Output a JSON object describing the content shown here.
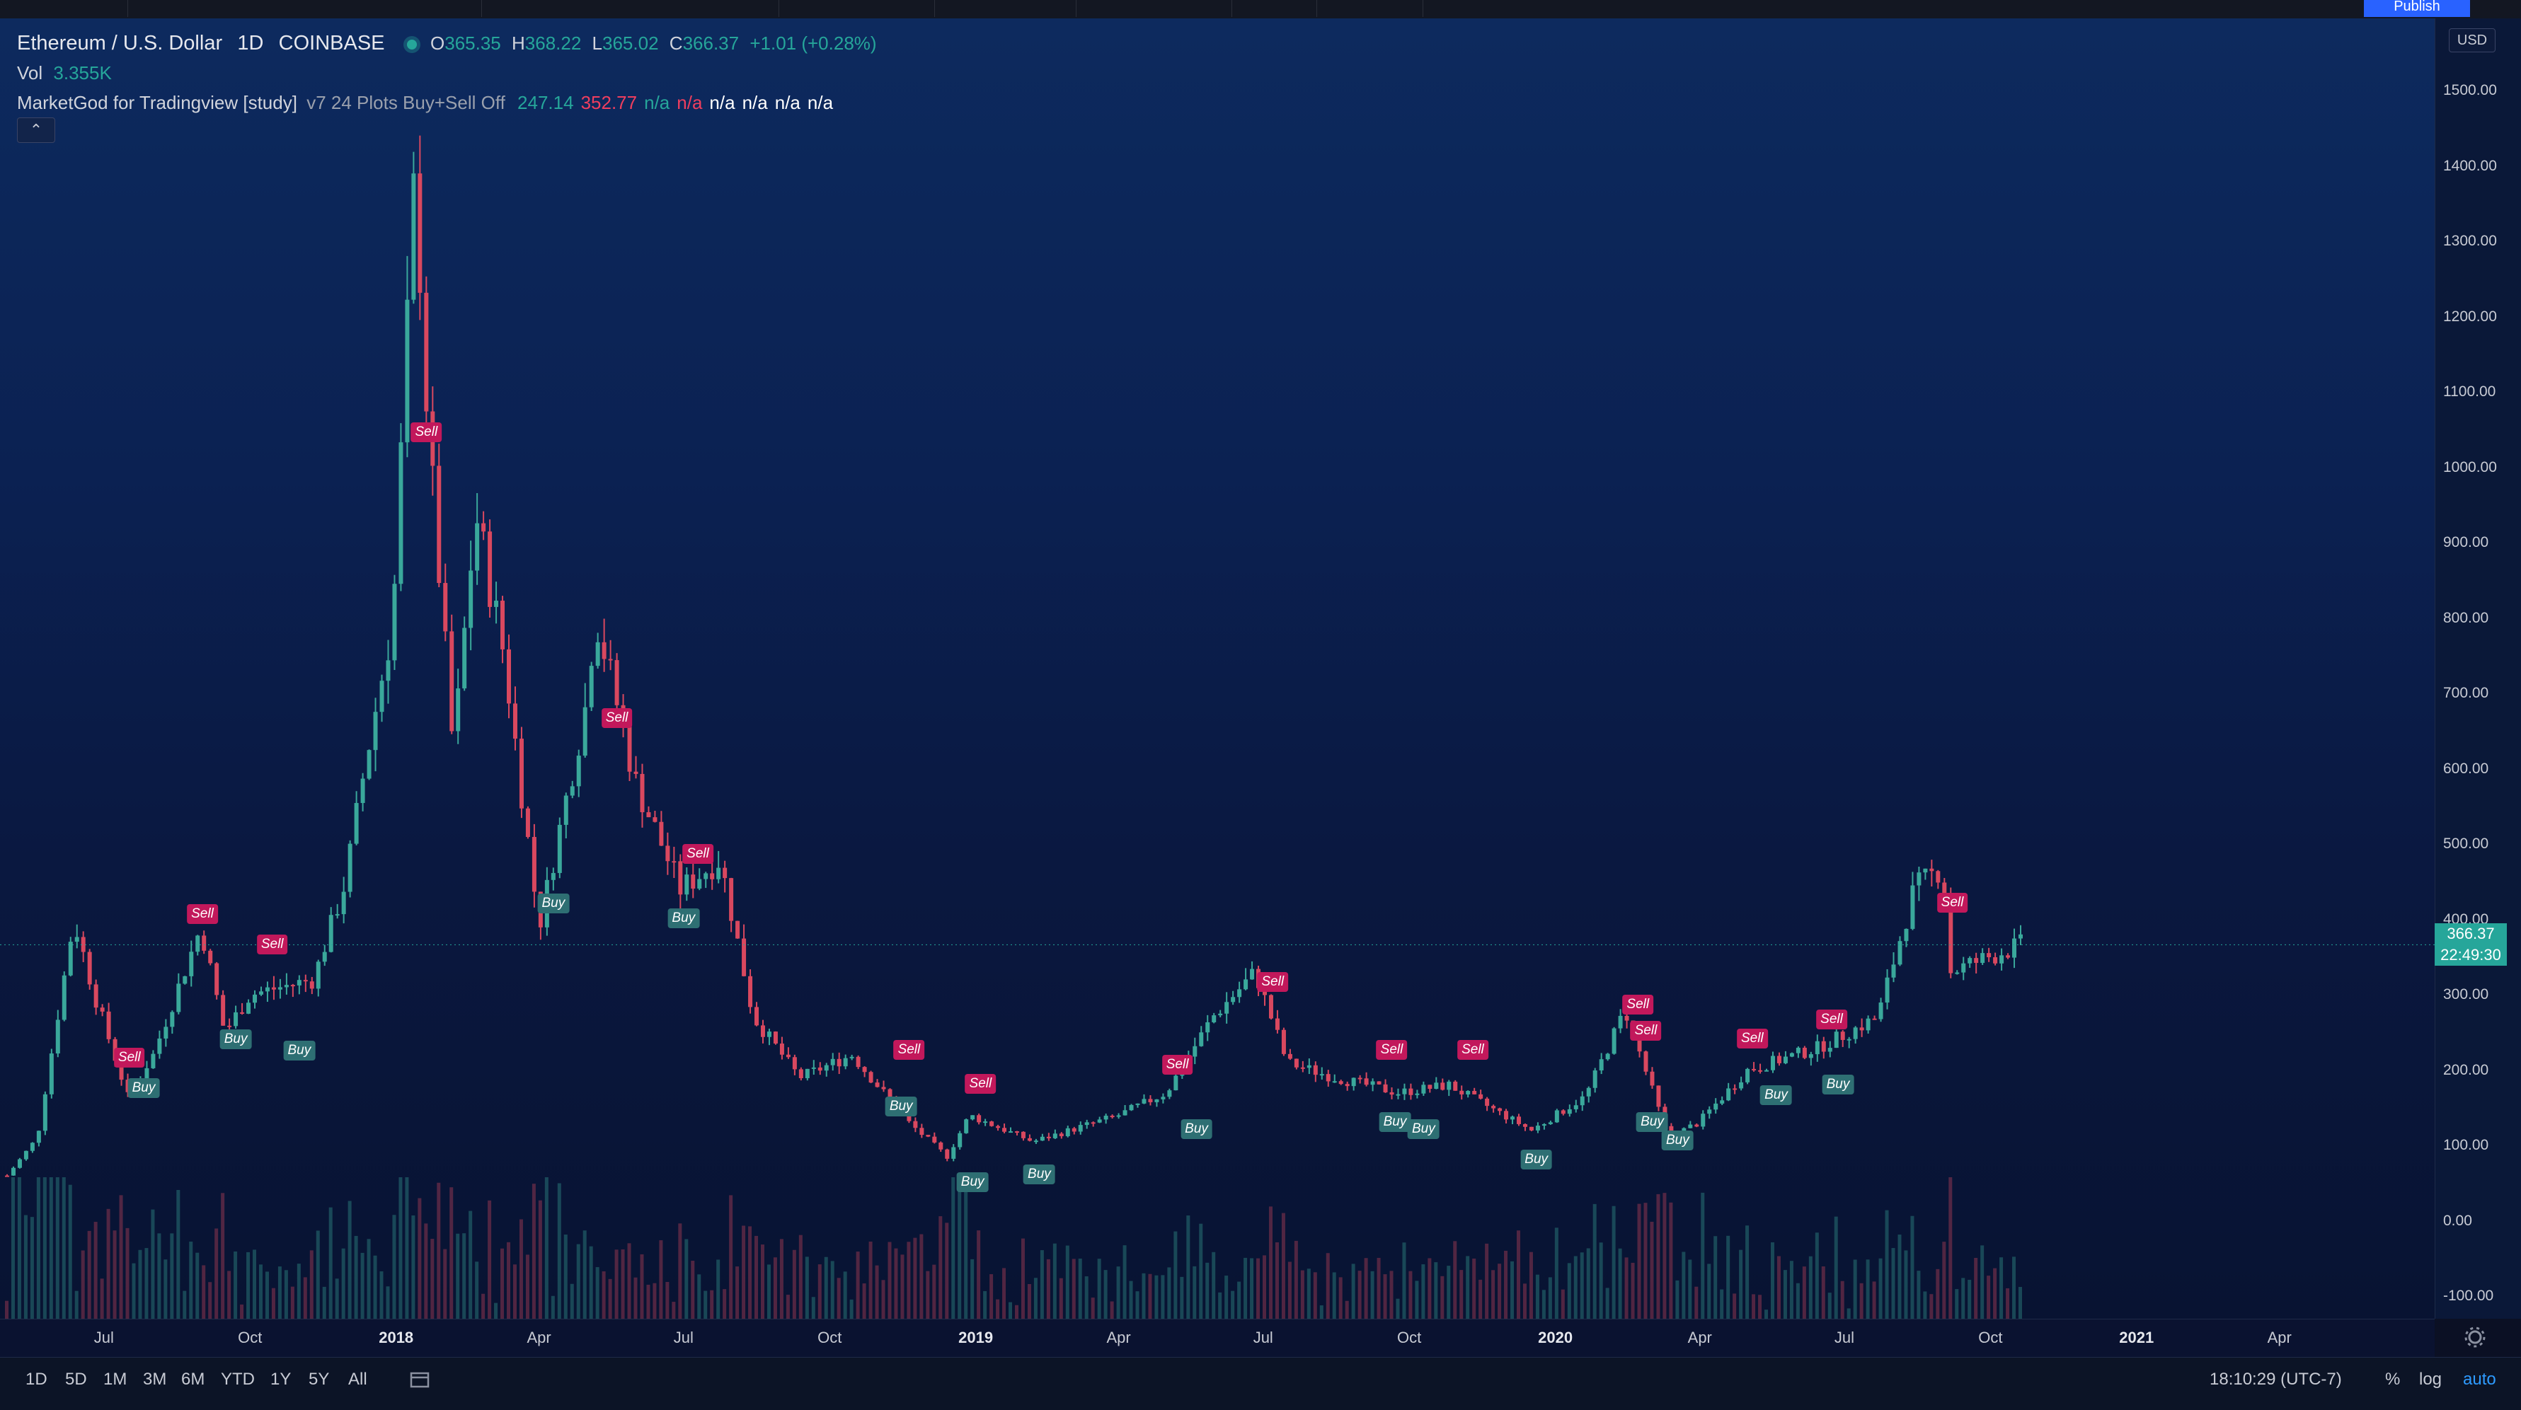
{
  "legend": {
    "symbol": "Ethereum / U.S. Dollar",
    "interval": "1D",
    "exchange": "COINBASE",
    "open_label": "O",
    "open": "365.35",
    "high_label": "H",
    "high": "368.22",
    "low_label": "L",
    "low": "365.02",
    "close_label": "C",
    "close": "366.37",
    "change": "+1.01 (+0.28%)",
    "vol_label": "Vol",
    "vol": "3.355K",
    "indicator_name": "MarketGod for Tradingview [study]",
    "indicator_args": "v7 24 Plots Buy+Sell Off",
    "indicator_values": [
      {
        "text": "247.14",
        "tone": "g"
      },
      {
        "text": "352.77",
        "tone": "r"
      },
      {
        "text": "n/a",
        "tone": "g"
      },
      {
        "text": "n/a",
        "tone": "r"
      },
      {
        "text": "n/a",
        "tone": "w"
      },
      {
        "text": "n/a",
        "tone": "w"
      },
      {
        "text": "n/a",
        "tone": "w"
      },
      {
        "text": "n/a",
        "tone": "w"
      }
    ],
    "collapse_icon": "chevron-up-icon"
  },
  "toolbar": {
    "publish_label": "Publish",
    "colors": {
      "accent": "#2962ff",
      "up": "#26a69a",
      "down": "#ef5350"
    }
  },
  "price_axis": {
    "currency": "USD",
    "ticks": [
      "1500.00",
      "1400.00",
      "1300.00",
      "1200.00",
      "1100.00",
      "1000.00",
      "900.00",
      "800.00",
      "700.00",
      "600.00",
      "500.00",
      "400.00",
      "300.00",
      "200.00",
      "100.00",
      "0.00",
      "-100.00"
    ],
    "last_price": "366.37",
    "countdown": "22:49:30"
  },
  "time_axis": {
    "ticks": [
      {
        "label": "Jul",
        "bold": false
      },
      {
        "label": "Oct",
        "bold": false
      },
      {
        "label": "2018",
        "bold": true
      },
      {
        "label": "Apr",
        "bold": false
      },
      {
        "label": "Jul",
        "bold": false
      },
      {
        "label": "Oct",
        "bold": false
      },
      {
        "label": "2019",
        "bold": true
      },
      {
        "label": "Apr",
        "bold": false
      },
      {
        "label": "Jul",
        "bold": false
      },
      {
        "label": "Oct",
        "bold": false
      },
      {
        "label": "2020",
        "bold": true
      },
      {
        "label": "Apr",
        "bold": false
      },
      {
        "label": "Jul",
        "bold": false
      },
      {
        "label": "Oct",
        "bold": false
      },
      {
        "label": "2021",
        "bold": true
      },
      {
        "label": "Apr",
        "bold": false
      }
    ],
    "settings_icon": "gear-icon"
  },
  "bottom_bar": {
    "ranges": [
      "1D",
      "5D",
      "1M",
      "3M",
      "6M",
      "YTD",
      "1Y",
      "5Y",
      "All"
    ],
    "goto_icon": "calendar-goto-icon",
    "clock": "18:10:29 (UTC-7)",
    "percent": "%",
    "log": "log",
    "auto": "auto"
  },
  "chart_data": {
    "type": "candlestick",
    "title": "Ethereum / U.S. Dollar",
    "x_start": "2017-05",
    "x_end": "2020-10-20",
    "ylim": [
      -100,
      1500
    ],
    "grid": false,
    "series": [
      {
        "name": "close",
        "points": [
          [
            "2017-05-01",
            60
          ],
          [
            "2017-05-20",
            110
          ],
          [
            "2017-06-12",
            400
          ],
          [
            "2017-06-25",
            300
          ],
          [
            "2017-07-16",
            165
          ],
          [
            "2017-08-01",
            220
          ],
          [
            "2017-08-31",
            390
          ],
          [
            "2017-09-15",
            250
          ],
          [
            "2017-10-01",
            300
          ],
          [
            "2017-10-20",
            310
          ],
          [
            "2017-11-10",
            320
          ],
          [
            "2017-11-30",
            450
          ],
          [
            "2017-12-12",
            600
          ],
          [
            "2017-12-30",
            800
          ],
          [
            "2018-01-13",
            1400
          ],
          [
            "2018-01-21",
            1050
          ],
          [
            "2018-02-06",
            620
          ],
          [
            "2018-02-20",
            940
          ],
          [
            "2018-03-10",
            750
          ],
          [
            "2018-04-01",
            390
          ],
          [
            "2018-05-01",
            690
          ],
          [
            "2018-05-06",
            810
          ],
          [
            "2018-06-01",
            580
          ],
          [
            "2018-06-29",
            440
          ],
          [
            "2018-07-24",
            480
          ],
          [
            "2018-08-14",
            270
          ],
          [
            "2018-09-12",
            190
          ],
          [
            "2018-10-15",
            220
          ],
          [
            "2018-11-20",
            130
          ],
          [
            "2018-12-14",
            85
          ],
          [
            "2018-12-28",
            140
          ],
          [
            "2019-02-06",
            105
          ],
          [
            "2019-04-01",
            140
          ],
          [
            "2019-05-01",
            170
          ],
          [
            "2019-05-30",
            270
          ],
          [
            "2019-06-26",
            330
          ],
          [
            "2019-07-16",
            210
          ],
          [
            "2019-08-15",
            190
          ],
          [
            "2019-09-24",
            170
          ],
          [
            "2019-10-26",
            180
          ],
          [
            "2019-12-17",
            120
          ],
          [
            "2020-01-20",
            165
          ],
          [
            "2020-02-14",
            280
          ],
          [
            "2020-03-12",
            110
          ],
          [
            "2020-03-31",
            130
          ],
          [
            "2020-05-01",
            200
          ],
          [
            "2020-06-15",
            230
          ],
          [
            "2020-07-22",
            270
          ],
          [
            "2020-08-14",
            440
          ],
          [
            "2020-09-01",
            470
          ],
          [
            "2020-09-05",
            330
          ],
          [
            "2020-10-20",
            366
          ]
        ]
      }
    ],
    "signals": [
      {
        "type": "Sell",
        "date": "2017-07-17",
        "price": 200
      },
      {
        "type": "Buy",
        "date": "2017-07-26",
        "price": 195
      },
      {
        "type": "Sell",
        "date": "2017-09-01",
        "price": 390
      },
      {
        "type": "Buy",
        "date": "2017-09-22",
        "price": 260
      },
      {
        "type": "Sell",
        "date": "2017-10-15",
        "price": 350
      },
      {
        "type": "Buy",
        "date": "2017-11-01",
        "price": 245
      },
      {
        "type": "Sell",
        "date": "2018-01-20",
        "price": 1030
      },
      {
        "type": "Buy",
        "date": "2018-04-10",
        "price": 440
      },
      {
        "type": "Sell",
        "date": "2018-05-20",
        "price": 650
      },
      {
        "type": "Buy",
        "date": "2018-07-01",
        "price": 420
      },
      {
        "type": "Sell",
        "date": "2018-07-10",
        "price": 470
      },
      {
        "type": "Sell",
        "date": "2018-11-20",
        "price": 210
      },
      {
        "type": "Buy",
        "date": "2018-11-15",
        "price": 170
      },
      {
        "type": "Buy",
        "date": "2018-12-30",
        "price": 70
      },
      {
        "type": "Sell",
        "date": "2019-01-04",
        "price": 165
      },
      {
        "type": "Buy",
        "date": "2019-02-10",
        "price": 80
      },
      {
        "type": "Sell",
        "date": "2019-05-08",
        "price": 190
      },
      {
        "type": "Buy",
        "date": "2019-05-20",
        "price": 140
      },
      {
        "type": "Sell",
        "date": "2019-07-07",
        "price": 300
      },
      {
        "type": "Buy",
        "date": "2019-09-22",
        "price": 150
      },
      {
        "type": "Sell",
        "date": "2019-09-20",
        "price": 210
      },
      {
        "type": "Buy",
        "date": "2019-10-10",
        "price": 140
      },
      {
        "type": "Sell",
        "date": "2019-11-10",
        "price": 210
      },
      {
        "type": "Buy",
        "date": "2019-12-20",
        "price": 100
      },
      {
        "type": "Sell",
        "date": "2020-02-22",
        "price": 270
      },
      {
        "type": "Sell",
        "date": "2020-02-27",
        "price": 235
      },
      {
        "type": "Buy",
        "date": "2020-03-02",
        "price": 150
      },
      {
        "type": "Buy",
        "date": "2020-03-18",
        "price": 125
      },
      {
        "type": "Sell",
        "date": "2020-05-04",
        "price": 225
      },
      {
        "type": "Buy",
        "date": "2020-05-19",
        "price": 185
      },
      {
        "type": "Sell",
        "date": "2020-06-23",
        "price": 250
      },
      {
        "type": "Buy",
        "date": "2020-06-27",
        "price": 200
      },
      {
        "type": "Sell",
        "date": "2020-09-07",
        "price": 405
      }
    ]
  }
}
